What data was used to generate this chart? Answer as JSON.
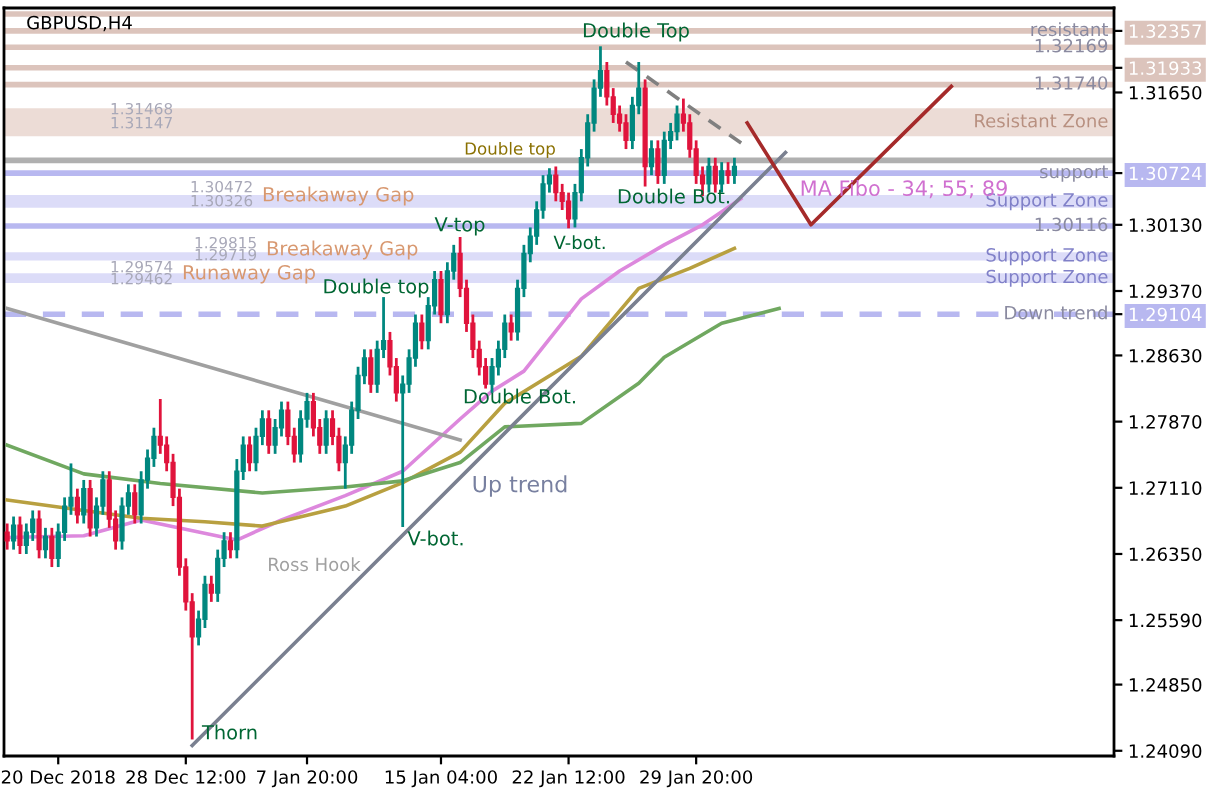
{
  "chart_data": {
    "type": "candlestick",
    "title": "GBPUSD,H4",
    "categories": [
      null,
      null,
      null,
      null,
      null,
      null,
      null,
      null,
      "20 Dec 2018",
      null,
      null,
      null,
      null,
      null,
      null,
      null,
      null,
      null,
      null,
      null,
      null,
      null,
      null,
      null,
      null,
      null,
      null,
      null,
      "28 Dec 12:00",
      null,
      null,
      null,
      null,
      null,
      null,
      null,
      null,
      null,
      null,
      null,
      null,
      null,
      null,
      null,
      null,
      null,
      null,
      "7 Jan 20:00",
      null,
      null,
      null,
      null,
      null,
      null,
      null,
      null,
      null,
      null,
      null,
      null,
      null,
      null,
      null,
      null,
      null,
      null,
      null,
      null,
      "15 Jan 04:00",
      null,
      null,
      null,
      null,
      null,
      null,
      null,
      null,
      null,
      null,
      null,
      null,
      null,
      null,
      null,
      null,
      null,
      null,
      null,
      "22 Jan 12:00",
      null,
      null,
      null,
      null,
      null,
      null,
      null,
      null,
      null,
      null,
      null,
      null,
      null,
      null,
      null,
      null,
      null,
      null,
      null,
      "29 Jan 20:00",
      null,
      null,
      null,
      null,
      null,
      null,
      null,
      null,
      null,
      null,
      null,
      null,
      null,
      null,
      null,
      null,
      null,
      null,
      null,
      null,
      null,
      null,
      null,
      null,
      null,
      null,
      null,
      null,
      null,
      null,
      null,
      null,
      null,
      null,
      null,
      null,
      null,
      null,
      null,
      null,
      null,
      null,
      null,
      null,
      null,
      null,
      null,
      null,
      null,
      null,
      null,
      null,
      null,
      null,
      null,
      null,
      null,
      null,
      null,
      null,
      null,
      null,
      null,
      null,
      null
    ],
    "ohlc": [
      [
        1.266,
        1.267,
        1.264,
        1.265
      ],
      [
        1.265,
        1.2678,
        1.264,
        1.2668
      ],
      [
        1.2668,
        1.2678,
        1.2635,
        1.2645
      ],
      [
        1.2645,
        1.267,
        1.2635,
        1.266
      ],
      [
        1.266,
        1.2685,
        1.265,
        1.2675
      ],
      [
        1.2675,
        1.2685,
        1.263,
        1.264
      ],
      [
        1.264,
        1.2665,
        1.263,
        1.2655
      ],
      [
        1.2655,
        1.2665,
        1.262,
        1.263
      ],
      [
        1.263,
        1.267,
        1.262,
        1.266
      ],
      [
        1.266,
        1.27,
        1.265,
        1.269
      ],
      [
        1.269,
        1.2739,
        1.268,
        1.27
      ],
      [
        1.27,
        1.271,
        1.267,
        1.268
      ],
      [
        1.268,
        1.272,
        1.267,
        1.271
      ],
      [
        1.271,
        1.272,
        1.2655,
        1.2665
      ],
      [
        1.2665,
        1.27,
        1.2655,
        1.269
      ],
      [
        1.269,
        1.273,
        1.268,
        1.272
      ],
      [
        1.272,
        1.273,
        1.2665,
        1.2675
      ],
      [
        1.2675,
        1.2685,
        1.264,
        1.265
      ],
      [
        1.265,
        1.27,
        1.264,
        1.269
      ],
      [
        1.269,
        1.2715,
        1.268,
        1.2705
      ],
      [
        1.2705,
        1.2715,
        1.267,
        1.268
      ],
      [
        1.268,
        1.273,
        1.267,
        1.272
      ],
      [
        1.272,
        1.2755,
        1.271,
        1.2745
      ],
      [
        1.2745,
        1.278,
        1.2735,
        1.277
      ],
      [
        1.277,
        1.2813,
        1.275,
        1.276
      ],
      [
        1.276,
        1.277,
        1.273,
        1.274
      ],
      [
        1.274,
        1.275,
        1.269,
        1.27
      ],
      [
        1.27,
        1.271,
        1.261,
        1.262
      ],
      [
        1.262,
        1.263,
        1.257,
        1.258
      ],
      [
        1.258,
        1.259,
        1.2422,
        1.254
      ],
      [
        1.254,
        1.257,
        1.253,
        1.256
      ],
      [
        1.256,
        1.261,
        1.255,
        1.26
      ],
      [
        1.26,
        1.261,
        1.258,
        1.259
      ],
      [
        1.259,
        1.264,
        1.258,
        1.263
      ],
      [
        1.263,
        1.266,
        1.262,
        1.265
      ],
      [
        1.265,
        1.266,
        1.263,
        1.264
      ],
      [
        1.264,
        1.2744,
        1.263,
        1.273
      ],
      [
        1.273,
        1.277,
        1.272,
        1.276
      ],
      [
        1.276,
        1.277,
        1.273,
        1.274
      ],
      [
        1.274,
        1.278,
        1.273,
        1.277
      ],
      [
        1.277,
        1.28,
        1.276,
        1.279
      ],
      [
        1.279,
        1.28,
        1.275,
        1.276
      ],
      [
        1.276,
        1.279,
        1.275,
        1.278
      ],
      [
        1.278,
        1.281,
        1.277,
        1.28
      ],
      [
        1.28,
        1.281,
        1.276,
        1.277
      ],
      [
        1.277,
        1.278,
        1.274,
        1.275
      ],
      [
        1.275,
        1.28,
        1.274,
        1.279
      ],
      [
        1.279,
        1.282,
        1.278,
        1.281
      ],
      [
        1.281,
        1.282,
        1.277,
        1.278
      ],
      [
        1.278,
        1.279,
        1.275,
        1.276
      ],
      [
        1.276,
        1.28,
        1.275,
        1.279
      ],
      [
        1.279,
        1.28,
        1.276,
        1.277
      ],
      [
        1.277,
        1.278,
        1.273,
        1.274
      ],
      [
        1.274,
        1.277,
        1.271,
        1.276
      ],
      [
        1.276,
        1.281,
        1.275,
        1.28
      ],
      [
        1.28,
        1.285,
        1.279,
        1.284
      ],
      [
        1.284,
        1.287,
        1.283,
        1.286
      ],
      [
        1.286,
        1.287,
        1.282,
        1.283
      ],
      [
        1.283,
        1.288,
        1.282,
        1.287
      ],
      [
        1.287,
        1.293,
        1.286,
        1.288
      ],
      [
        1.288,
        1.289,
        1.284,
        1.285
      ],
      [
        1.285,
        1.286,
        1.281,
        1.282
      ],
      [
        1.282,
        1.284,
        1.2666,
        1.283
      ],
      [
        1.283,
        1.287,
        1.282,
        1.286
      ],
      [
        1.286,
        1.291,
        1.285,
        1.29
      ],
      [
        1.29,
        1.291,
        1.287,
        1.288
      ],
      [
        1.288,
        1.293,
        1.287,
        1.292
      ],
      [
        1.292,
        1.296,
        1.291,
        1.295
      ],
      [
        1.295,
        1.296,
        1.29,
        1.291
      ],
      [
        1.291,
        1.297,
        1.29,
        1.296
      ],
      [
        1.296,
        1.299,
        1.295,
        1.298
      ],
      [
        1.298,
        1.2999,
        1.293,
        1.294
      ],
      [
        1.294,
        1.295,
        1.289,
        1.29
      ],
      [
        1.29,
        1.291,
        1.286,
        1.287
      ],
      [
        1.287,
        1.288,
        1.284,
        1.285
      ],
      [
        1.285,
        1.286,
        1.2825,
        1.283
      ],
      [
        1.283,
        1.286,
        1.282,
        1.285
      ],
      [
        1.285,
        1.288,
        1.284,
        1.287
      ],
      [
        1.287,
        1.291,
        1.286,
        1.29
      ],
      [
        1.29,
        1.291,
        1.288,
        1.289
      ],
      [
        1.289,
        1.295,
        1.288,
        1.294
      ],
      [
        1.294,
        1.299,
        1.293,
        1.298
      ],
      [
        1.298,
        1.301,
        1.297,
        1.3
      ],
      [
        1.3,
        1.304,
        1.299,
        1.303
      ],
      [
        1.303,
        1.307,
        1.302,
        1.306
      ],
      [
        1.306,
        1.3078,
        1.305,
        1.307
      ],
      [
        1.307,
        1.308,
        1.304,
        1.305
      ],
      [
        1.305,
        1.306,
        1.303,
        1.304
      ],
      [
        1.304,
        1.305,
        1.3009,
        1.302
      ],
      [
        1.302,
        1.306,
        1.301,
        1.305
      ],
      [
        1.305,
        1.31,
        1.304,
        1.309
      ],
      [
        1.309,
        1.314,
        1.308,
        1.313
      ],
      [
        1.313,
        1.318,
        1.312,
        1.317
      ],
      [
        1.317,
        1.3218,
        1.316,
        1.319
      ],
      [
        1.319,
        1.32,
        1.315,
        1.316
      ],
      [
        1.316,
        1.317,
        1.313,
        1.314
      ],
      [
        1.314,
        1.315,
        1.312,
        1.313
      ],
      [
        1.313,
        1.314,
        1.31,
        1.311
      ],
      [
        1.311,
        1.316,
        1.31,
        1.315
      ],
      [
        1.315,
        1.32,
        1.314,
        1.317
      ],
      [
        1.317,
        1.318,
        1.3057,
        1.308
      ],
      [
        1.308,
        1.311,
        1.307,
        1.31
      ],
      [
        1.31,
        1.311,
        1.306,
        1.307
      ],
      [
        1.307,
        1.312,
        1.306,
        1.311
      ],
      [
        1.311,
        1.313,
        1.31,
        1.312
      ],
      [
        1.312,
        1.315,
        1.311,
        1.314
      ],
      [
        1.314,
        1.3158,
        1.312,
        1.313
      ],
      [
        1.313,
        1.314,
        1.309,
        1.31
      ],
      [
        1.31,
        1.311,
        1.306,
        1.307
      ],
      [
        1.307,
        1.308,
        1.3046,
        1.306
      ],
      [
        1.306,
        1.309,
        1.305,
        1.308
      ],
      [
        1.308,
        1.309,
        1.305,
        1.306
      ],
      [
        1.306,
        1.3085,
        1.305,
        1.3075
      ],
      [
        1.3075,
        1.3085,
        1.306,
        1.307
      ],
      [
        1.307,
        1.309,
        1.306,
        1.308
      ],
      null,
      null,
      null,
      null,
      null,
      null,
      null,
      null,
      null,
      null,
      null,
      null,
      null,
      null,
      null,
      null,
      null,
      null,
      null,
      null,
      null,
      null,
      null,
      null,
      null,
      null,
      null,
      null,
      null,
      null,
      null,
      null,
      null,
      null,
      null,
      null,
      null,
      null,
      null,
      null,
      null,
      null,
      null,
      null,
      null,
      null,
      null,
      null,
      null,
      null,
      null,
      null,
      null,
      null,
      null,
      null,
      null,
      null,
      null
    ],
    "colors": [
      "#e0143c",
      "#00877f",
      "#e0143c",
      "#00877f",
      "#00877f",
      "#e0143c",
      "#00877f",
      "#e0143c",
      "#00877f",
      "#00877f",
      "#00877f",
      "#e0143c",
      "#00877f",
      "#e0143c",
      "#00877f",
      "#00877f",
      "#e0143c",
      "#e0143c",
      "#00877f",
      "#00877f",
      "#e0143c",
      "#00877f",
      "#00877f",
      "#00877f",
      "#e0143c",
      "#e0143c",
      "#e0143c",
      "#e0143c",
      "#e0143c",
      "#e0143c",
      "#00877f",
      "#00877f",
      "#e0143c",
      "#00877f",
      "#00877f",
      "#e0143c",
      "#00877f",
      "#00877f",
      "#e0143c",
      "#00877f",
      "#00877f",
      "#e0143c",
      "#00877f",
      "#00877f",
      "#e0143c",
      "#e0143c",
      "#00877f",
      "#00877f",
      "#e0143c",
      "#e0143c",
      "#00877f",
      "#e0143c",
      "#e0143c",
      "#00877f",
      "#00877f",
      "#00877f",
      "#00877f",
      "#e0143c",
      "#00877f",
      "#00877f",
      "#e0143c",
      "#e0143c",
      "#00877f",
      "#00877f",
      "#00877f",
      "#e0143c",
      "#00877f",
      "#00877f",
      "#e0143c",
      "#00877f",
      "#00877f",
      "#e0143c",
      "#e0143c",
      "#e0143c",
      "#e0143c",
      "#e0143c",
      "#00877f",
      "#00877f",
      "#00877f",
      "#e0143c",
      "#00877f",
      "#00877f",
      "#00877f",
      "#00877f",
      "#00877f",
      "#00877f",
      "#e0143c",
      "#e0143c",
      "#e0143c",
      "#00877f",
      "#00877f",
      "#00877f",
      "#00877f",
      "#00877f",
      "#e0143c",
      "#e0143c",
      "#e0143c",
      "#e0143c",
      "#00877f",
      "#00877f",
      "#e0143c",
      "#00877f",
      "#e0143c",
      "#00877f",
      "#00877f",
      "#00877f",
      "#e0143c",
      "#e0143c",
      "#e0143c",
      "#e0143c",
      "#00877f",
      "#e0143c",
      "#00877f",
      "#e0143c",
      "#00877f",
      null,
      null,
      null,
      null,
      null,
      null,
      null,
      null,
      null,
      null,
      null,
      null,
      null,
      null,
      null,
      null,
      null,
      null,
      null,
      null,
      null,
      null,
      null,
      null,
      null,
      null,
      null,
      null,
      null,
      null,
      null,
      null,
      null,
      null,
      null,
      null,
      null,
      null,
      null,
      null,
      null,
      null,
      null,
      null,
      null,
      null,
      null,
      null,
      null,
      null,
      null,
      null,
      null,
      null,
      null,
      null,
      null,
      null,
      null
    ],
    "series": [
      {
        "type": "line",
        "color": "#dd88dd",
        "values": [
          1.2654,
          null,
          null,
          null,
          null,
          null,
          null,
          null,
          null,
          null,
          null,
          null,
          1.2656,
          null,
          null,
          null,
          null,
          null,
          null,
          null,
          null,
          1.2674,
          null,
          null,
          null,
          null,
          null,
          null,
          null,
          null,
          null,
          null,
          null,
          null,
          null,
          null,
          1.2651,
          null,
          null,
          null,
          null,
          null,
          null,
          1.2674,
          null,
          null,
          null,
          null,
          null,
          null,
          null,
          null,
          null,
          1.2702,
          null,
          null,
          null,
          null,
          null,
          null,
          null,
          null,
          1.273,
          null,
          null,
          null,
          null,
          null,
          null,
          null,
          null,
          1.279,
          null,
          null,
          null,
          null,
          1.2822,
          null,
          null,
          null,
          null,
          1.2845,
          null,
          null,
          null,
          null,
          null,
          null,
          null,
          null,
          1.2928,
          null,
          null,
          null,
          null,
          null,
          1.296,
          null,
          null,
          null,
          null,
          null,
          null,
          1.299,
          null,
          null,
          null,
          null,
          null,
          1.3013,
          null,
          null,
          null,
          null,
          null,
          1.3043,
          null,
          null,
          null,
          null,
          null,
          null,
          null,
          null,
          null,
          null,
          null,
          null,
          null,
          null,
          null,
          null,
          null,
          null,
          null,
          null,
          null,
          null,
          null,
          null,
          null,
          null,
          null,
          null,
          null,
          null,
          null,
          null,
          null,
          null,
          null,
          null,
          null,
          null,
          null,
          null,
          null,
          null,
          null,
          null,
          null,
          null,
          null,
          null,
          null,
          null,
          null,
          null,
          null,
          null,
          null,
          null,
          null,
          null
        ]
      },
      {
        "type": "line",
        "color": "#b8a040",
        "values": [
          1.2697,
          null,
          null,
          null,
          null,
          null,
          null,
          null,
          null,
          null,
          null,
          null,
          1.2685,
          null,
          null,
          null,
          null,
          null,
          null,
          null,
          null,
          1.2676,
          null,
          null,
          null,
          null,
          null,
          null,
          null,
          null,
          null,
          1.2672,
          null,
          null,
          null,
          null,
          null,
          null,
          null,
          null,
          1.2667,
          null,
          null,
          null,
          null,
          null,
          null,
          null,
          null,
          null,
          null,
          null,
          null,
          1.269,
          null,
          null,
          null,
          null,
          null,
          null,
          null,
          null,
          1.2717,
          null,
          null,
          null,
          null,
          null,
          null,
          null,
          null,
          1.2752,
          null,
          null,
          null,
          null,
          null,
          null,
          1.2808,
          null,
          null,
          null,
          null,
          null,
          null,
          null,
          null,
          null,
          null,
          null,
          1.2862,
          null,
          null,
          null,
          null,
          null,
          null,
          null,
          null,
          1.294,
          null,
          null,
          null,
          null,
          null,
          null,
          null,
          1.2963,
          null,
          null,
          null,
          null,
          null,
          null,
          1.2986,
          null,
          null,
          null,
          null,
          null,
          null,
          null,
          null,
          null,
          null,
          null,
          null,
          null,
          null,
          null,
          null,
          null,
          null,
          null,
          null,
          null,
          null,
          null,
          null,
          null,
          null,
          null,
          null,
          null,
          null,
          null,
          null,
          null,
          null,
          null,
          null,
          null,
          null,
          null,
          null,
          null,
          null,
          null,
          null,
          null,
          null,
          null,
          null,
          null,
          null,
          null,
          null,
          null,
          null,
          null,
          null,
          null,
          null,
          null
        ]
      },
      {
        "type": "line",
        "color": "#70a860",
        "values": [
          1.276,
          null,
          null,
          null,
          null,
          null,
          null,
          null,
          null,
          null,
          null,
          null,
          1.2727,
          null,
          null,
          null,
          null,
          null,
          null,
          null,
          null,
          null,
          null,
          null,
          1.2716,
          null,
          null,
          null,
          null,
          null,
          null,
          null,
          null,
          null,
          null,
          null,
          null,
          null,
          null,
          null,
          1.2705,
          null,
          null,
          null,
          null,
          null,
          null,
          null,
          null,
          null,
          null,
          null,
          null,
          1.2712,
          null,
          null,
          null,
          null,
          null,
          null,
          null,
          null,
          1.2719,
          null,
          null,
          null,
          null,
          null,
          null,
          null,
          null,
          1.274,
          null,
          null,
          null,
          null,
          null,
          null,
          1.2781,
          null,
          null,
          null,
          null,
          null,
          null,
          null,
          null,
          null,
          null,
          null,
          1.2785,
          null,
          null,
          null,
          null,
          null,
          null,
          null,
          null,
          1.2831,
          null,
          null,
          null,
          1.2861,
          null,
          null,
          null,
          null,
          null,
          null,
          null,
          null,
          1.29,
          null,
          null,
          null,
          null,
          null,
          null,
          null,
          null,
          1.2917,
          null,
          null,
          null,
          null,
          null,
          null,
          null,
          null,
          null,
          null,
          null,
          null,
          null,
          null,
          null,
          null,
          null,
          null,
          null,
          null,
          null,
          null,
          null,
          null,
          null,
          null,
          null,
          null,
          null,
          null,
          null,
          null,
          null,
          null,
          null,
          null,
          null,
          null,
          null,
          null,
          null,
          null,
          null,
          null,
          null,
          null,
          null,
          null,
          null,
          null,
          null,
          null
        ]
      },
      {
        "type": "line",
        "color": "#7a8090",
        "values": [
          null,
          null,
          null,
          null,
          null,
          null,
          null,
          null,
          null,
          null,
          null,
          null,
          null,
          null,
          null,
          null,
          null,
          null,
          null,
          null,
          null,
          null,
          null,
          null,
          null,
          null,
          null,
          null,
          null,
          1.2415,
          null,
          null,
          null,
          null,
          null,
          null,
          null,
          null,
          null,
          null,
          null,
          null,
          null,
          null,
          null,
          null,
          null,
          null,
          null,
          null,
          null,
          null,
          null,
          null,
          null,
          null,
          null,
          null,
          null,
          null,
          null,
          null,
          null,
          null,
          null,
          null,
          null,
          null,
          null,
          null,
          null,
          null,
          null,
          null,
          null,
          null,
          null,
          null,
          null,
          null,
          null,
          null,
          null,
          null,
          null,
          null,
          null,
          null,
          null,
          null,
          null,
          null,
          null,
          null,
          null,
          null,
          null,
          null,
          null,
          null,
          null,
          null,
          null,
          null,
          null,
          null,
          null,
          null,
          null,
          null,
          null,
          null,
          null,
          null,
          null,
          null,
          null,
          null,
          null,
          null,
          null,
          null,
          1.3096,
          null,
          null,
          null,
          null,
          null,
          null,
          null,
          null,
          null,
          null,
          null,
          null,
          null,
          null,
          null,
          null,
          null,
          null,
          null,
          null,
          null,
          null,
          null,
          null,
          null,
          null,
          null,
          null,
          null,
          null,
          null,
          null,
          null,
          null,
          null,
          null,
          null,
          null,
          null,
          null,
          null,
          null,
          null,
          null,
          null,
          null,
          null,
          null,
          null,
          null,
          null
        ]
      },
      {
        "type": "line",
        "color": "#a0a0a0",
        "values": [
          1.2917,
          null,
          null,
          null,
          null,
          null,
          null,
          null,
          null,
          null,
          null,
          null,
          null,
          null,
          null,
          null,
          null,
          null,
          null,
          null,
          null,
          null,
          null,
          null,
          null,
          null,
          null,
          null,
          null,
          null,
          null,
          null,
          null,
          null,
          null,
          null,
          null,
          null,
          null,
          null,
          null,
          null,
          null,
          null,
          null,
          null,
          null,
          null,
          null,
          null,
          null,
          null,
          null,
          null,
          null,
          null,
          null,
          null,
          null,
          null,
          null,
          null,
          null,
          null,
          null,
          null,
          null,
          null,
          null,
          null,
          null,
          1.2766,
          null,
          null,
          null,
          null,
          null,
          null,
          null,
          null,
          null,
          null,
          null,
          null,
          null,
          null,
          null,
          null,
          null,
          null,
          null,
          null,
          null,
          null,
          null,
          null,
          null,
          null,
          null,
          null,
          null,
          null,
          null,
          null,
          null,
          null,
          null,
          null,
          null,
          null,
          null,
          null,
          null,
          null,
          null,
          null,
          null,
          null,
          null,
          null,
          null,
          null,
          null,
          null,
          null,
          null,
          null,
          null,
          null,
          null,
          null,
          null,
          null,
          null,
          null,
          null,
          null,
          null,
          null,
          null,
          null,
          null,
          null,
          null,
          null,
          null,
          null,
          null,
          null,
          null,
          null,
          null,
          null,
          null,
          null,
          null,
          null,
          null,
          null,
          null,
          null,
          null,
          null,
          null,
          null,
          null,
          null,
          null,
          null,
          null,
          null,
          null,
          null,
          null
        ]
      },
      {
        "type": "line",
        "color": "#808080",
        "line_style": "dashed",
        "values": [
          null,
          null,
          null,
          null,
          null,
          null,
          null,
          null,
          null,
          null,
          null,
          null,
          null,
          null,
          null,
          null,
          null,
          null,
          null,
          null,
          null,
          null,
          null,
          null,
          null,
          null,
          null,
          null,
          null,
          null,
          null,
          null,
          null,
          null,
          null,
          null,
          null,
          null,
          null,
          null,
          null,
          null,
          null,
          null,
          null,
          null,
          null,
          null,
          null,
          null,
          null,
          null,
          null,
          null,
          null,
          null,
          null,
          null,
          null,
          null,
          null,
          null,
          null,
          null,
          null,
          null,
          null,
          null,
          null,
          null,
          null,
          null,
          null,
          null,
          null,
          null,
          null,
          null,
          null,
          null,
          null,
          null,
          null,
          null,
          null,
          null,
          null,
          null,
          null,
          null,
          null,
          null,
          null,
          null,
          null,
          null,
          null,
          1.32,
          null,
          null,
          null,
          null,
          null,
          null,
          null,
          null,
          null,
          null,
          null,
          null,
          null,
          null,
          null,
          null,
          null,
          null,
          1.3102,
          null,
          null,
          null,
          null,
          null,
          null,
          null,
          null,
          null,
          null,
          null,
          null,
          null,
          null,
          null,
          null,
          null,
          null,
          null,
          null,
          null,
          null,
          null,
          null,
          null,
          null,
          null,
          null,
          null,
          null,
          null,
          null,
          null,
          null,
          null,
          null,
          null,
          null,
          null,
          null,
          null,
          null,
          null,
          null,
          null,
          null,
          null,
          null,
          null,
          null,
          null,
          null,
          null,
          null,
          null,
          null,
          null
        ]
      },
      {
        "type": "line",
        "color": "#a52a2a",
        "values": [
          null,
          null,
          null,
          null,
          null,
          null,
          null,
          null,
          null,
          null,
          null,
          null,
          null,
          null,
          null,
          null,
          null,
          null,
          null,
          null,
          null,
          null,
          null,
          null,
          null,
          null,
          null,
          null,
          null,
          null,
          null,
          null,
          null,
          null,
          null,
          null,
          null,
          null,
          null,
          null,
          null,
          null,
          null,
          null,
          null,
          null,
          null,
          null,
          null,
          null,
          null,
          null,
          null,
          null,
          null,
          null,
          null,
          null,
          null,
          null,
          null,
          null,
          null,
          null,
          null,
          null,
          null,
          null,
          null,
          null,
          null,
          null,
          null,
          null,
          null,
          null,
          null,
          null,
          null,
          null,
          null,
          null,
          null,
          null,
          null,
          null,
          null,
          null,
          null,
          null,
          null,
          null,
          null,
          null,
          null,
          null,
          null,
          null,
          null,
          null,
          null,
          null,
          null,
          null,
          null,
          null,
          null,
          null,
          null,
          null,
          null,
          null,
          null,
          null,
          null,
          null,
          1.313,
          null,
          null,
          null,
          null,
          null,
          null,
          null,
          null,
          null,
          1.3013,
          null,
          null,
          null,
          null,
          null,
          null,
          null,
          null,
          null,
          null,
          null,
          null,
          null,
          null,
          null,
          null,
          null,
          null,
          null,
          null,
          null,
          1.3172,
          null,
          null,
          null,
          null,
          null,
          null,
          null,
          null,
          null,
          null,
          null,
          null,
          null,
          null,
          null,
          null,
          null,
          null,
          null,
          null,
          null,
          null,
          null,
          null,
          null
        ]
      }
    ],
    "ylim": [
      1.2403,
      1.3262
    ],
    "yticks": [
      {
        "value": 1.3165,
        "label": "1.31650"
      },
      {
        "value": 1.3013,
        "label": "1.30130"
      },
      {
        "value": 1.2937,
        "label": "1.29370"
      },
      {
        "value": 1.2863,
        "label": "1.28630"
      },
      {
        "value": 1.2787,
        "label": "1.27870"
      },
      {
        "value": 1.2711,
        "label": "1.27110"
      },
      {
        "value": 1.2635,
        "label": "1.26350"
      },
      {
        "value": 1.2559,
        "label": "1.25590"
      },
      {
        "value": 1.2485,
        "label": "1.24850"
      },
      {
        "value": 1.2409,
        "label": "1.24090"
      },
      1.32357,
      1.31933,
      1.30724,
      1.29104
    ],
    "ref_lines": [
      {
        "axis": "y",
        "value": 1.3255,
        "color": "#dcc4bc"
      },
      {
        "axis": "y",
        "value": 1.32357,
        "label": "resistant",
        "color": "#dcc4bc"
      },
      {
        "axis": "y",
        "value": 1.32169,
        "label": "1.32169",
        "color": "#dcc4bc"
      },
      {
        "axis": "y",
        "value": 1.31933,
        "color": "#dcc4bc"
      },
      {
        "axis": "y",
        "value": 1.3174,
        "label": "1.31740",
        "color": "#dcc4bc"
      },
      {
        "axis": "y",
        "value": 1.3087,
        "color": "#b0b0b0"
      },
      {
        "axis": "y",
        "value": 1.30724,
        "label": "support",
        "color": "#b8b8f0"
      },
      {
        "axis": "y",
        "value": 1.30116,
        "label": "1.30116",
        "color": "#b8b8f0"
      },
      {
        "axis": "y",
        "value": 1.29104,
        "label": "Down trend",
        "color": "#b8b8f0",
        "line_style": "dashed"
      }
    ],
    "bands": [
      {
        "axis": "y",
        "from": 1.31147,
        "to": 1.31468,
        "label": "Resistant Zone",
        "color": "#ecdcd6"
      },
      {
        "axis": "y",
        "from": 1.30326,
        "to": 1.30472,
        "label": "Support Zone",
        "color": "#dcdcf8"
      },
      {
        "axis": "y",
        "from": 1.29719,
        "to": 1.29815,
        "label": "Support Zone",
        "color": "#dcdcf8"
      },
      {
        "axis": "y",
        "from": 1.29462,
        "to": 1.29574,
        "label": "Support Zone",
        "color": "#dcdcf8"
      }
    ],
    "annotations": [
      "Double Top",
      "Double top",
      "Double Bot.",
      "V-bot.",
      "V-top",
      "Double top",
      "Double Bot.",
      "V-bot.",
      "Thorn",
      "Ross Hook",
      "Up trend",
      "MA Fibo - 34; 55; 89",
      "Breakaway Gap",
      "Breakaway Gap",
      "Runaway Gap",
      "1.31468",
      "1.31147",
      "1.30472",
      "1.30326",
      "1.29815",
      "1.29719",
      "1.29574",
      "1.29462"
    ]
  }
}
